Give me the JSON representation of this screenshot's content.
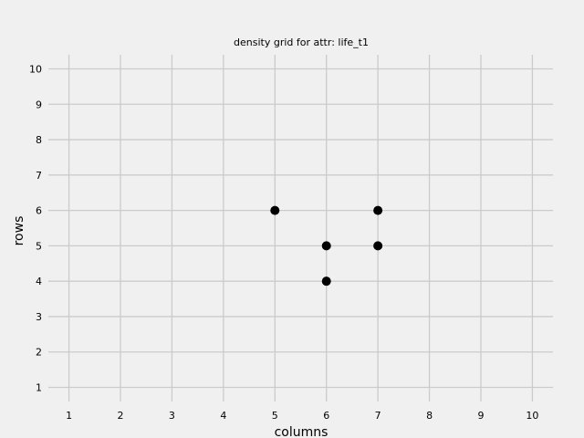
{
  "chart_data": {
    "type": "scatter",
    "title": "density grid for attr: life_t1",
    "xlabel": "columns",
    "ylabel": "rows",
    "xlim": [
      0.6,
      10.4
    ],
    "ylim": [
      0.6,
      10.4
    ],
    "xticks": [
      "1",
      "2",
      "3",
      "4",
      "5",
      "6",
      "7",
      "8",
      "9",
      "10"
    ],
    "yticks": [
      "1",
      "2",
      "3",
      "4",
      "5",
      "6",
      "7",
      "8",
      "9",
      "10"
    ],
    "grid": true,
    "points": [
      {
        "x": 5,
        "y": 6
      },
      {
        "x": 6,
        "y": 5
      },
      {
        "x": 6,
        "y": 4
      },
      {
        "x": 7,
        "y": 6
      },
      {
        "x": 7,
        "y": 5
      }
    ],
    "colors": {
      "background": "#f0f0f0",
      "grid": "#cbcbcb",
      "marker": "#000000"
    }
  }
}
